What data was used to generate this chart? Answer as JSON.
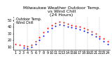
{
  "title": "Milwaukee Weather Outdoor Temp.\nvs Wind Chill\n(24 Hours)",
  "legend": [
    "Outdoor Temp.",
    "Wind Chill"
  ],
  "red_x": [
    0,
    1,
    2,
    3,
    4,
    5,
    6,
    7,
    8,
    9,
    10,
    11,
    12,
    13,
    14,
    15,
    16,
    17,
    18,
    19,
    20,
    21,
    22,
    23
  ],
  "red_y": [
    14,
    13,
    12,
    11,
    13,
    18,
    25,
    32,
    38,
    43,
    46,
    48,
    47,
    45,
    43,
    42,
    40,
    38,
    36,
    33,
    30,
    26,
    22,
    18
  ],
  "blue_x": [
    2,
    3,
    4,
    5,
    6,
    7,
    8,
    9,
    10,
    11,
    12,
    13,
    14,
    15,
    16,
    17,
    18,
    19,
    20,
    21,
    22,
    23
  ],
  "blue_y": [
    9,
    8,
    10,
    14,
    20,
    27,
    33,
    38,
    42,
    44,
    43,
    41,
    39,
    38,
    36,
    34,
    32,
    29,
    26,
    22,
    18,
    14
  ],
  "ylim": [
    5,
    55
  ],
  "xlim": [
    -0.5,
    23.5
  ],
  "ytick_vals": [
    10,
    20,
    30,
    40,
    50
  ],
  "ytick_labels": [
    "10",
    "20",
    "30",
    "40",
    "50"
  ],
  "xtick_positions": [
    0,
    1,
    2,
    3,
    4,
    5,
    6,
    7,
    8,
    9,
    10,
    11,
    12,
    13,
    14,
    15,
    16,
    17,
    18,
    19,
    20,
    21,
    22,
    23
  ],
  "xtick_labels": [
    "1",
    "2",
    "3",
    "4",
    "5",
    "6",
    "7",
    "8",
    "9",
    "10",
    "11",
    "12",
    "13",
    "14",
    "15",
    "16",
    "17",
    "18",
    "19",
    "20",
    "21",
    "22",
    "23",
    "24"
  ],
  "vlines": [
    3,
    6,
    9,
    12,
    15,
    18,
    21
  ],
  "red_color": "#ff0000",
  "blue_color": "#0000ff",
  "bg_color": "#ffffff",
  "title_fontsize": 4.5,
  "legend_fontsize": 3.5,
  "tick_fontsize": 3.5,
  "grid_color": "#999999",
  "dot_size": 2.0
}
